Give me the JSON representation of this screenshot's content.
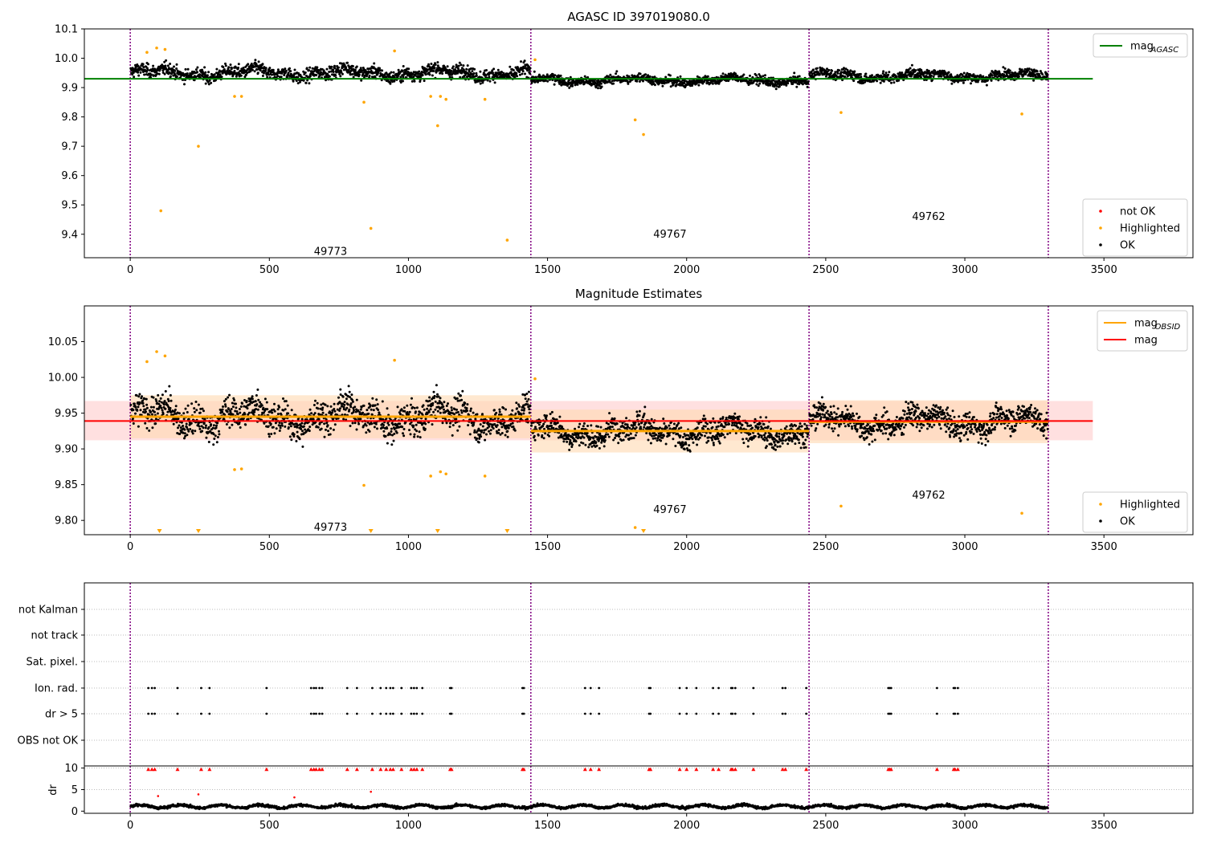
{
  "colors": {
    "ok": "#000000",
    "highlighted": "#ffa500",
    "not_ok": "#ff0000",
    "agasc_line": "#008000",
    "obsid_line": "#ffa500",
    "mag_line": "#ff0000",
    "divider": "#800080",
    "band_mag": "#ffcccc",
    "band_obsid": "#ffd8b0",
    "grid": "#bbbbbb"
  },
  "chart_data": [
    {
      "id": "top",
      "type": "scatter",
      "title": "AGASC ID 397019080.0",
      "xlim": [
        -165,
        3820
      ],
      "ylim": [
        9.32,
        10.1
      ],
      "xticks": [
        "0",
        "500",
        "1000",
        "1500",
        "2000",
        "2500",
        "3000",
        "3500"
      ],
      "yticks": [
        "9.4",
        "9.5",
        "9.6",
        "9.7",
        "9.8",
        "9.9",
        "10.0",
        "10.1"
      ],
      "obsid_bounds": [
        0,
        1440,
        2440,
        3300
      ],
      "obsid_labels": [
        {
          "text": "49773",
          "x": 720,
          "y": 9.34
        },
        {
          "text": "49767",
          "x": 1940,
          "y": 9.4
        },
        {
          "text": "49762",
          "x": 2870,
          "y": 9.46
        }
      ],
      "hlines": [
        {
          "name": "mag_AGASC",
          "y": 9.93,
          "x0": -165,
          "x1": 3460
        }
      ],
      "segments": [
        {
          "x0": 0,
          "x1": 1440,
          "mean": 9.95,
          "sd": 0.028
        },
        {
          "x0": 1440,
          "x1": 2440,
          "mean": 9.925,
          "sd": 0.02
        },
        {
          "x0": 2440,
          "x1": 3300,
          "mean": 9.94,
          "sd": 0.022
        }
      ],
      "highlighted_points": [
        [
          60,
          10.02
        ],
        [
          95,
          10.035
        ],
        [
          125,
          10.03
        ],
        [
          110,
          9.48
        ],
        [
          245,
          9.7
        ],
        [
          375,
          9.87
        ],
        [
          400,
          9.87
        ],
        [
          840,
          9.85
        ],
        [
          865,
          9.42
        ],
        [
          950,
          10.025
        ],
        [
          1080,
          9.87
        ],
        [
          1105,
          9.77
        ],
        [
          1115,
          9.87
        ],
        [
          1135,
          9.86
        ],
        [
          1275,
          9.86
        ],
        [
          1355,
          9.38
        ],
        [
          1455,
          9.995
        ],
        [
          1815,
          9.79
        ],
        [
          1845,
          9.74
        ],
        [
          2555,
          9.815
        ],
        [
          3205,
          9.81
        ]
      ],
      "legends": [
        {
          "position": "upper-right",
          "items": [
            {
              "label": "mag",
              "sub": "AGASC",
              "kind": "line",
              "color": "#008000"
            }
          ]
        },
        {
          "position": "lower-right",
          "items": [
            {
              "label": "not OK",
              "kind": "dot",
              "color": "#ff0000"
            },
            {
              "label": "Highlighted",
              "kind": "dot",
              "color": "#ffa500"
            },
            {
              "label": "OK",
              "kind": "dot",
              "color": "#000000"
            }
          ]
        }
      ]
    },
    {
      "id": "mid",
      "type": "scatter",
      "title": "Magnitude Estimates",
      "xlim": [
        -165,
        3820
      ],
      "ylim": [
        9.78,
        10.1
      ],
      "xticks": [
        "0",
        "500",
        "1000",
        "1500",
        "2000",
        "2500",
        "3000",
        "3500"
      ],
      "yticks": [
        "9.80",
        "9.85",
        "9.90",
        "9.95",
        "10.00",
        "10.05"
      ],
      "obsid_bounds": [
        0,
        1440,
        2440,
        3300
      ],
      "obsid_labels": [
        {
          "text": "49773",
          "x": 720,
          "y": 9.79
        },
        {
          "text": "49767",
          "x": 1940,
          "y": 9.815
        },
        {
          "text": "49762",
          "x": 2870,
          "y": 9.835
        }
      ],
      "hlines": [
        {
          "name": "mag",
          "y": 9.939,
          "x0": -165,
          "x1": 3460
        }
      ],
      "mag_band": {
        "y0": 9.912,
        "y1": 9.967,
        "x0": -165,
        "x1": 3460
      },
      "segments": [
        {
          "x0": 0,
          "x1": 1440,
          "mean": 9.945,
          "sd": 0.028
        },
        {
          "x0": 1440,
          "x1": 2440,
          "mean": 9.925,
          "sd": 0.022
        },
        {
          "x0": 2440,
          "x1": 3300,
          "mean": 9.938,
          "sd": 0.022
        }
      ],
      "highlighted_points": [
        [
          60,
          10.022
        ],
        [
          95,
          10.036
        ],
        [
          125,
          10.03
        ],
        [
          375,
          9.871
        ],
        [
          400,
          9.872
        ],
        [
          840,
          9.849
        ],
        [
          950,
          10.024
        ],
        [
          1080,
          9.862
        ],
        [
          1115,
          9.868
        ],
        [
          1135,
          9.865
        ],
        [
          1275,
          9.862
        ],
        [
          1455,
          9.998
        ],
        [
          1815,
          9.79
        ],
        [
          2555,
          9.82
        ],
        [
          3205,
          9.81
        ]
      ],
      "offscale_markers": [
        105,
        245,
        865,
        1105,
        1355,
        1845
      ],
      "legends": [
        {
          "position": "upper-right",
          "items": [
            {
              "label": "mag",
              "sub": "OBSID",
              "kind": "line",
              "color": "#ffa500"
            },
            {
              "label": "mag",
              "kind": "line",
              "color": "#ff0000"
            }
          ]
        },
        {
          "position": "lower-right",
          "items": [
            {
              "label": "Highlighted",
              "kind": "dot",
              "color": "#ffa500"
            },
            {
              "label": "OK",
              "kind": "dot",
              "color": "#000000"
            }
          ]
        }
      ]
    },
    {
      "id": "flags",
      "type": "scatter",
      "xlim": [
        -165,
        3820
      ],
      "rows": [
        "not Kalman",
        "not track",
        "Sat. pixel.",
        "Ion. rad.",
        "dr > 5",
        "OBS not OK"
      ],
      "obsid_bounds": [
        0,
        1440,
        2440,
        3300
      ],
      "flag_times": [
        65,
        78,
        88,
        170,
        255,
        285,
        490,
        650,
        660,
        668,
        680,
        690,
        780,
        815,
        870,
        900,
        920,
        935,
        945,
        975,
        1010,
        1020,
        1030,
        1050,
        1150,
        1155,
        1410,
        1415,
        1635,
        1655,
        1685,
        1865,
        1870,
        1975,
        2000,
        2035,
        2095,
        2115,
        2160,
        2165,
        2175,
        2240,
        2345,
        2355,
        2430,
        2725,
        2730,
        2735,
        2900,
        2960,
        2965,
        2975
      ]
    },
    {
      "id": "dr",
      "type": "scatter",
      "xlim": [
        -165,
        3820
      ],
      "ylim": [
        -0.5,
        10.5
      ],
      "ylabel": "dr",
      "yticks": [
        "0",
        "5",
        "10"
      ],
      "xticks": [
        "0",
        "500",
        "1000",
        "1500",
        "2000",
        "2500",
        "3000",
        "3500"
      ],
      "obsid_bounds": [
        0,
        1440,
        2440,
        3300
      ],
      "outliers": [
        [
          100,
          3.5
        ],
        [
          245,
          3.9
        ],
        [
          590,
          3.2
        ],
        [
          865,
          4.5
        ]
      ]
    }
  ]
}
